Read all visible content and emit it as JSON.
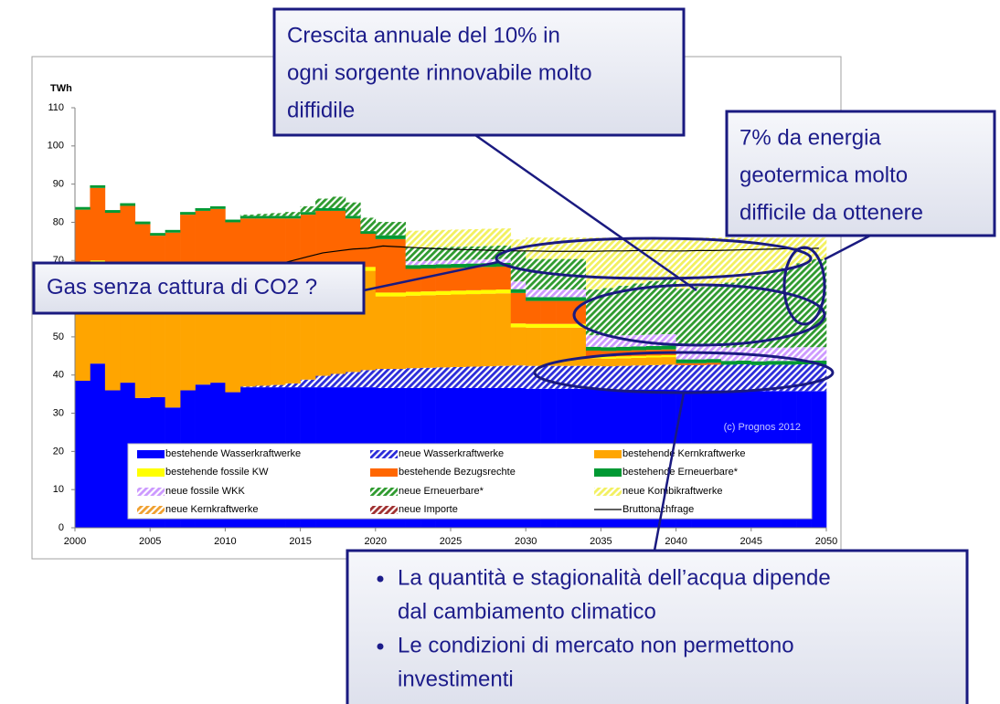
{
  "chart_data": {
    "type": "bar",
    "stacked": true,
    "y_label": "TWh",
    "source": "(c) Prognos 2012",
    "xlim": [
      2000,
      2050
    ],
    "xticks": [
      2000,
      2005,
      2010,
      2015,
      2020,
      2025,
      2030,
      2035,
      2040,
      2045,
      2050
    ],
    "ylim": [
      0,
      110
    ],
    "yticks": [
      0,
      10,
      20,
      30,
      40,
      50,
      60,
      70,
      80,
      90,
      100,
      110
    ],
    "x": [
      2000,
      2001,
      2002,
      2003,
      2004,
      2005,
      2006,
      2007,
      2008,
      2009,
      2010,
      2011,
      2012,
      2013,
      2014,
      2015,
      2016,
      2017,
      2018,
      2019,
      2020,
      2021,
      2022,
      2023,
      2024,
      2025,
      2026,
      2027,
      2028,
      2029,
      2030,
      2031,
      2032,
      2033,
      2034,
      2035,
      2036,
      2037,
      2038,
      2039,
      2040,
      2041,
      2042,
      2043,
      2044,
      2045,
      2046,
      2047,
      2048,
      2049
    ],
    "series": [
      {
        "name": "bestehende Wasserkraftwerke",
        "color": "#0000ff",
        "hatch": false,
        "values": [
          38.5,
          43,
          36,
          38,
          34,
          34.2,
          31.5,
          36,
          37.5,
          38,
          35.5,
          36.8,
          36.8,
          36.8,
          36.8,
          36.8,
          36.8,
          36.8,
          36.8,
          36.8,
          36.6,
          36.6,
          36.6,
          36.6,
          36.6,
          36.6,
          36.6,
          36.6,
          36.6,
          36.6,
          36.4,
          36.4,
          36.4,
          36.4,
          36.4,
          36.2,
          36.2,
          36.2,
          36.2,
          36.2,
          36,
          36,
          36,
          36,
          36,
          35.8,
          35.8,
          35.8,
          35.8,
          35.8
        ]
      },
      {
        "name": "neue Wasserkraftwerke",
        "color": "#2b2bd9",
        "hatch": true,
        "values": [
          0,
          0,
          0,
          0,
          0,
          0,
          0,
          0,
          0,
          0,
          0,
          0.2,
          0.4,
          0.6,
          1,
          2,
          3,
          3.5,
          4,
          4.5,
          5,
          5,
          5.2,
          5.3,
          5.4,
          5.5,
          5.6,
          5.7,
          5.8,
          5.9,
          6,
          6,
          6,
          6,
          6,
          6.1,
          6.2,
          6.3,
          6.4,
          6.5,
          6.6,
          6.6,
          6.7,
          6.7,
          6.8,
          6.8,
          6.9,
          6.9,
          7,
          7
        ]
      },
      {
        "name": "bestehende Kernkraftwerke",
        "color": "#ffa500",
        "hatch": false,
        "values": [
          26,
          26,
          26,
          26,
          26,
          26,
          26,
          26,
          26,
          26,
          26,
          26,
          26,
          26,
          26,
          26,
          26,
          26,
          26,
          26,
          19,
          19,
          19,
          19,
          19,
          19,
          19,
          19,
          19,
          10,
          10,
          10,
          10,
          10,
          2,
          2,
          2,
          2,
          2,
          2,
          0,
          0,
          0,
          0,
          0,
          0,
          0,
          0,
          0,
          0
        ]
      },
      {
        "name": "bestehende fossile KW",
        "color": "#ffff00",
        "hatch": false,
        "values": [
          1,
          1,
          1,
          1,
          1,
          1,
          1,
          1,
          1,
          1,
          1,
          1,
          1,
          1,
          1,
          1,
          1,
          1,
          1,
          1,
          1,
          1,
          1,
          1,
          1,
          1,
          1,
          1,
          1,
          1,
          1,
          1,
          1,
          1,
          0.5,
          0.5,
          0.5,
          0.5,
          0.5,
          0.5,
          0,
          0,
          0,
          0,
          0,
          0,
          0,
          0,
          0,
          0
        ]
      },
      {
        "name": "bestehende Bezugsrechte",
        "color": "#ff6600",
        "hatch": false,
        "values": [
          17.8,
          19,
          19.5,
          19.3,
          18.5,
          15.3,
          18.8,
          19,
          18.5,
          18.5,
          17.5,
          17,
          16.8,
          16.6,
          16.2,
          16.2,
          16.2,
          15.7,
          13.2,
          8.7,
          14,
          14,
          6,
          6,
          6,
          6,
          6,
          6,
          6,
          8,
          6,
          6,
          6,
          6,
          1.5,
          1.5,
          1.5,
          1.5,
          1.5,
          1.5,
          0.5,
          0.5,
          0.5,
          0,
          0,
          0,
          0,
          0,
          0,
          0
        ]
      },
      {
        "name": "bestehende Erneuerbare*",
        "color": "#009933",
        "hatch": false,
        "values": [
          0.7,
          0.7,
          0.7,
          0.7,
          0.7,
          0.7,
          0.7,
          0.7,
          0.7,
          0.7,
          0.7,
          0.7,
          0.7,
          0.7,
          0.7,
          0.7,
          0.7,
          0.7,
          0.7,
          0.7,
          1,
          1,
          1,
          1,
          1,
          1,
          1,
          1,
          1,
          1,
          1,
          1,
          1,
          1,
          1,
          1,
          1,
          1,
          1,
          1,
          1,
          1,
          1,
          1,
          1,
          1,
          1,
          1,
          1,
          1
        ]
      },
      {
        "name": "neue fossile WKK",
        "color": "#cc99ff",
        "hatch": true,
        "values": [
          0,
          0,
          0,
          0,
          0,
          0,
          0,
          0,
          0,
          0,
          0,
          0,
          0,
          0,
          0,
          0,
          0,
          0,
          0,
          0,
          0,
          0,
          1,
          1,
          1,
          1,
          1,
          1,
          1,
          2,
          2,
          2,
          2,
          2,
          3,
          3,
          3,
          3,
          3,
          3,
          3.5,
          3.5,
          3.5,
          3.5,
          3.5,
          3.5,
          3.5,
          3.5,
          3.5,
          3.5
        ]
      },
      {
        "name": "neue Erneuerbare*",
        "color": "#2e9a2e",
        "hatch": true,
        "values": [
          0,
          0,
          0,
          0,
          0,
          0,
          0,
          0,
          0,
          0,
          0,
          0.3,
          0.5,
          0.7,
          1,
          1.5,
          2.5,
          3,
          3.5,
          3.5,
          3.5,
          3.5,
          3.5,
          3.5,
          3.5,
          3.5,
          3.5,
          3.5,
          3.5,
          8,
          8,
          8,
          8,
          8,
          12,
          12.5,
          13,
          13.5,
          14,
          14.5,
          15,
          15.5,
          16,
          17,
          18,
          19,
          20,
          21,
          22,
          23
        ]
      },
      {
        "name": "neue Kombikraftwerke",
        "color": "#f2f060",
        "hatch": true,
        "values": [
          0,
          0,
          0,
          0,
          0,
          0,
          0,
          0,
          0,
          0,
          0,
          0,
          0,
          0,
          0,
          0,
          0,
          0,
          0,
          0,
          0,
          0,
          4.5,
          4.5,
          4.5,
          4.5,
          4.5,
          4.5,
          4.5,
          3,
          5.6,
          5.6,
          5.6,
          5.6,
          13.6,
          13.2,
          12.6,
          12,
          11.4,
          10.8,
          13.4,
          12.9,
          12.3,
          11.8,
          10.7,
          9.9,
          8.8,
          7.8,
          6.7,
          5.7
        ]
      },
      {
        "name": "neue Kernkraftwerke",
        "color": "#f0a030",
        "hatch": true,
        "values": [
          0,
          0,
          0,
          0,
          0,
          0,
          0,
          0,
          0,
          0,
          0,
          0,
          0,
          0,
          0,
          0,
          0,
          0,
          0,
          0,
          0,
          0,
          0,
          0,
          0,
          0,
          0,
          0,
          0,
          0,
          0,
          0,
          0,
          0,
          0,
          0,
          0,
          0,
          0,
          0,
          0,
          0,
          0,
          0,
          0,
          0,
          0,
          0,
          0,
          0
        ]
      },
      {
        "name": "neue Importe",
        "color": "#a03030",
        "hatch": true,
        "values": [
          0,
          0,
          0,
          0,
          0,
          0,
          0,
          0,
          0,
          0,
          0,
          0,
          0,
          0,
          0,
          0,
          0,
          0,
          0,
          0,
          0,
          0,
          0,
          0,
          0,
          0,
          0,
          0,
          0,
          0,
          0,
          0,
          0,
          0,
          0,
          0,
          0,
          0,
          0,
          0,
          0,
          0,
          0,
          0,
          0,
          0,
          0,
          0,
          0,
          0
        ]
      },
      {
        "name": "Bruttonachfrage",
        "color": "#000000",
        "type": "line",
        "values": [
          62,
          63,
          63.5,
          64,
          64.5,
          65,
          65.5,
          66,
          66.5,
          67,
          67.5,
          68,
          68.5,
          69,
          70,
          71,
          72,
          72.5,
          73,
          73.2,
          73.8,
          73.6,
          73.4,
          73.2,
          73,
          72.9,
          72.8,
          72.7,
          72.6,
          72.5,
          72.5,
          72.4,
          72.4,
          72.4,
          72.4,
          72.5,
          72.5,
          72.6,
          72.6,
          72.5,
          72.5,
          72.6,
          72.6,
          72.7,
          72.8,
          72.9,
          73,
          73.1,
          73.1,
          73.2
        ]
      }
    ]
  },
  "annotations": [
    {
      "lines": [
        "Crescita annuale del 10% in",
        "ogni sorgente rinnovabile molto",
        "diffidile"
      ]
    },
    {
      "lines": [
        "7% da energia",
        "geotermica molto",
        "difficile da ottenere"
      ]
    },
    {
      "lines": [
        "Gas senza cattura di CO2 ?"
      ]
    }
  ],
  "bullet_box": {
    "bullets": [
      {
        "lines": [
          "La quantità e stagionalità dell’acqua dipende",
          "dal cambiamento climatico"
        ]
      },
      {
        "lines": [
          "Le condizioni di mercato non permettono",
          "investimenti"
        ]
      }
    ]
  }
}
